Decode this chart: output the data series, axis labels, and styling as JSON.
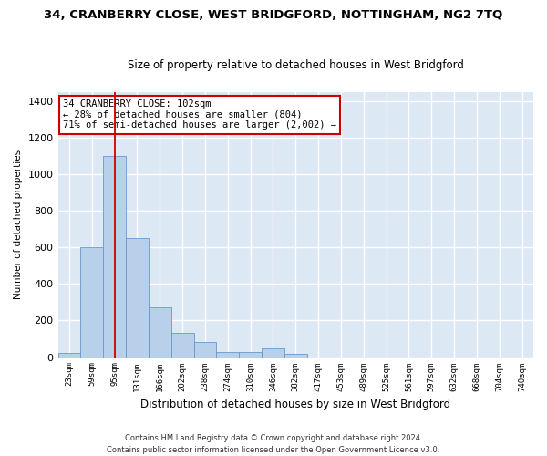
{
  "title": "34, CRANBERRY CLOSE, WEST BRIDGFORD, NOTTINGHAM, NG2 7TQ",
  "subtitle": "Size of property relative to detached houses in West Bridgford",
  "xlabel": "Distribution of detached houses by size in West Bridgford",
  "ylabel": "Number of detached properties",
  "footer_line1": "Contains HM Land Registry data © Crown copyright and database right 2024.",
  "footer_line2": "Contains public sector information licensed under the Open Government Licence v3.0.",
  "bin_labels": [
    "23sqm",
    "59sqm",
    "95sqm",
    "131sqm",
    "166sqm",
    "202sqm",
    "238sqm",
    "274sqm",
    "310sqm",
    "346sqm",
    "382sqm",
    "417sqm",
    "453sqm",
    "489sqm",
    "525sqm",
    "561sqm",
    "597sqm",
    "632sqm",
    "668sqm",
    "704sqm",
    "740sqm"
  ],
  "bar_heights": [
    25,
    600,
    1100,
    650,
    270,
    130,
    80,
    28,
    28,
    50,
    18,
    0,
    0,
    0,
    0,
    0,
    0,
    0,
    0,
    0,
    0
  ],
  "bar_color": "#b8d0ea",
  "bar_edge_color": "#6699cc",
  "background_color": "#dde8f5",
  "grid_color": "#ffffff",
  "fig_background": "#ffffff",
  "vline_x_index": 2,
  "vline_color": "#cc0000",
  "annotation_line1": "34 CRANBERRY CLOSE: 102sqm",
  "annotation_line2": "← 28% of detached houses are smaller (804)",
  "annotation_line3": "71% of semi-detached houses are larger (2,002) →",
  "annotation_box_color": "#ffffff",
  "annotation_box_edge": "#cc0000",
  "ylim": [
    0,
    1450
  ],
  "yticks": [
    0,
    200,
    400,
    600,
    800,
    1000,
    1200,
    1400
  ],
  "title_fontsize": 9.5,
  "subtitle_fontsize": 8.5
}
